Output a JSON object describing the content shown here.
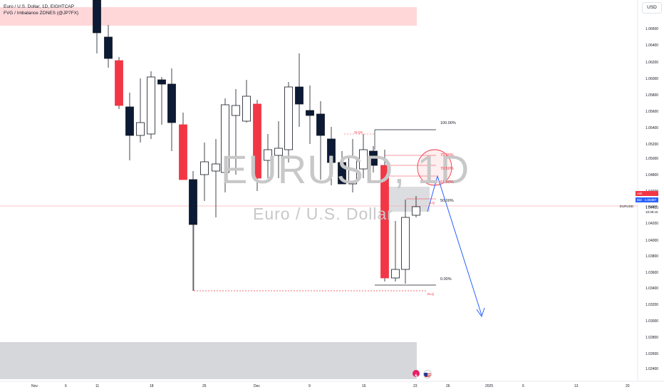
{
  "legend": {
    "symbol_line": "Euro / U.S. Dollar, 1D, EIGHTCAP",
    "indicator_line": "FVG / Imbalance ZONES (@JP7FX)"
  },
  "currency_button": "USD",
  "watermark": {
    "symbol": "EURUSD, 1D",
    "name": "Euro / U.S. Dollar"
  },
  "price_axis": {
    "labels": [
      "1.06600",
      "1.06400",
      "1.06200",
      "1.06000",
      "1.05800",
      "1.05600",
      "1.05400",
      "1.05200",
      "1.05000",
      "1.04800",
      "1.04600",
      "1.04400",
      "1.04200",
      "1.04000",
      "1.03800",
      "1.03600",
      "1.03400",
      "1.03200",
      "1.03000",
      "1.02800",
      "1.02600",
      "1.02400"
    ],
    "ask": {
      "label": "Ask",
      "value": "1.04398"
    },
    "bid": {
      "label": "Bid",
      "value": "1.04387"
    },
    "current": {
      "symbol": "EURUSD",
      "price": "1.04387",
      "countdown": "18:38:15"
    }
  },
  "time_axis": {
    "labels": [
      "Nov",
      "6",
      "11",
      "18",
      "25",
      "Dec",
      "9",
      "16",
      "23",
      "26",
      "2025",
      "6",
      "13",
      "20"
    ]
  },
  "fib_levels": {
    "high": "100.00%",
    "l79": "79.00%",
    "l705": "70.50%",
    "l618": "61.80%",
    "l50": "50.00%",
    "low": "0.00%"
  },
  "markers": {
    "sl": "SLQS",
    "lq": "LQ",
    "ssl": "SSL",
    "elq": "ELQ"
  },
  "colors": {
    "bull": "#ffffff",
    "bear_dark": "#0c1a35",
    "bear_red": "#f23645",
    "projection": "#2962ff",
    "zone_red": "#ffd7d9",
    "zone_grey": "#d6d7da",
    "ask": "#f23645",
    "bid": "#2962ff"
  },
  "icons": {
    "lightning": "lightning-icon",
    "us_flag": "us-flag-icon"
  }
}
